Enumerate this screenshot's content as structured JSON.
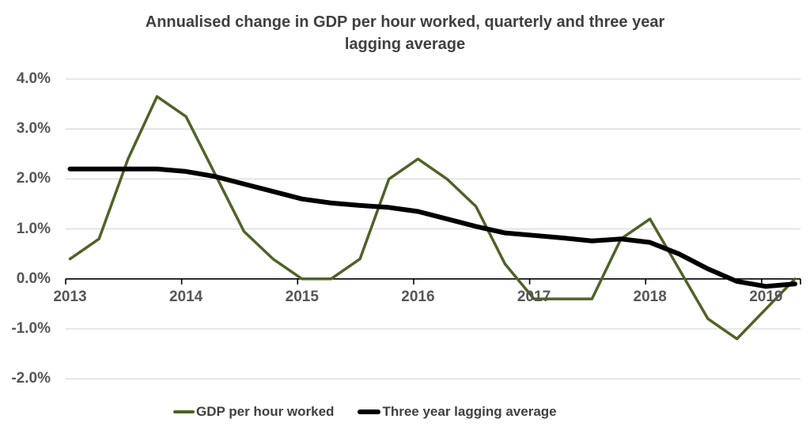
{
  "chart_data": {
    "type": "line",
    "title": "Annualised change in GDP per hour worked, quarterly and three year lagging average",
    "title_lines": [
      "Annualised change in GDP per hour worked, quarterly and three year",
      "lagging average"
    ],
    "x_axis": {
      "tick_labels": [
        "2013",
        "2014",
        "2015",
        "2016",
        "2017",
        "2018",
        "2019"
      ],
      "points_per_year": 4
    },
    "y_axis": {
      "tick_labels": [
        "4.0%",
        "3.0%",
        "2.0%",
        "1.0%",
        "0.0%",
        "-1.0%",
        "-2.0%"
      ],
      "tick_values": [
        4,
        3,
        2,
        1,
        0,
        -1,
        -2
      ],
      "range": [
        -2,
        4
      ],
      "unit": "percent"
    },
    "grid": true,
    "legend_position": "bottom",
    "colors": {
      "gridline": "#d9d9d9",
      "axis": "#000000",
      "axis_text": "#565656",
      "title_text": "#3f3f3f"
    },
    "series": [
      {
        "name": "GDP per hour worked",
        "color": "#4f6228",
        "stroke_width": 3.5,
        "values": [
          0.4,
          0.8,
          2.4,
          3.65,
          3.25,
          2.1,
          0.95,
          0.4,
          0.0,
          0.0,
          0.4,
          2.0,
          2.4,
          2.0,
          1.45,
          0.3,
          -0.4,
          -0.4,
          -0.4,
          0.8,
          1.2,
          0.2,
          -0.8,
          -1.2,
          -0.6,
          0.0
        ]
      },
      {
        "name": "Three year lagging average",
        "color": "#000000",
        "stroke_width": 6,
        "values": [
          2.2,
          2.2,
          2.2,
          2.2,
          2.15,
          2.05,
          1.9,
          1.75,
          1.6,
          1.52,
          1.47,
          1.43,
          1.35,
          1.2,
          1.05,
          0.92,
          0.87,
          0.82,
          0.76,
          0.8,
          0.73,
          0.5,
          0.2,
          -0.05,
          -0.15,
          -0.1
        ]
      }
    ]
  }
}
